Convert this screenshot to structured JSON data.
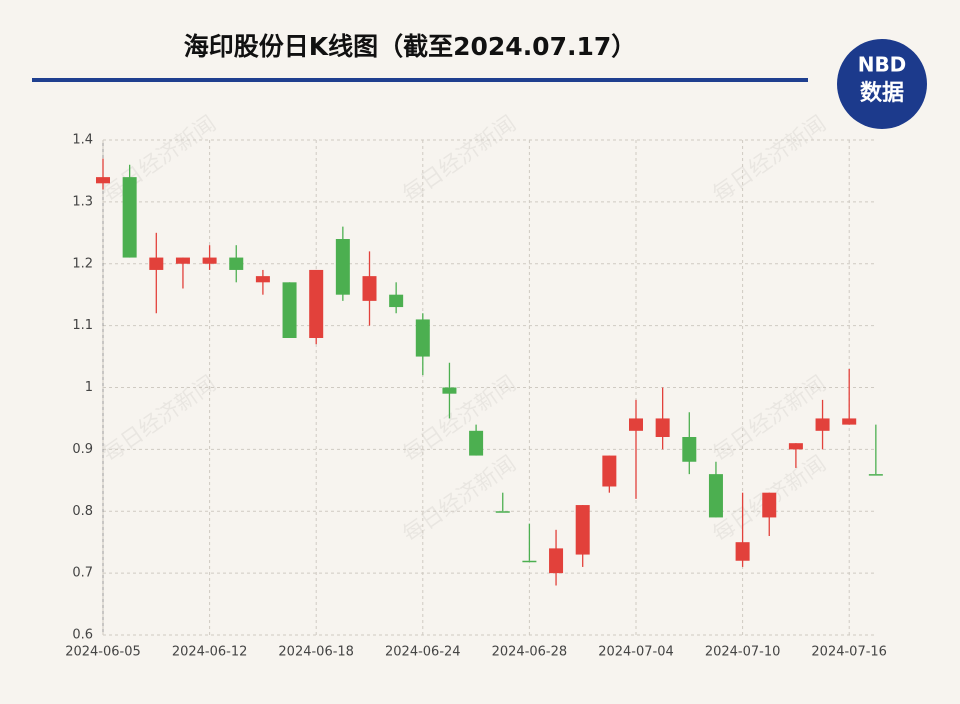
{
  "chart_data": {
    "type": "candlestick",
    "title": "海印股份日K线图（截至2024.07.17）",
    "logo": {
      "top": "NBD",
      "bottom": "数据"
    },
    "watermark": "每日经济新闻",
    "categories": [
      "2024-06-05",
      null,
      null,
      null,
      "2024-06-12",
      null,
      null,
      null,
      "2024-06-18",
      null,
      null,
      null,
      "2024-06-24",
      null,
      null,
      null,
      "2024-06-28",
      null,
      null,
      null,
      "2024-07-04",
      null,
      null,
      null,
      "2024-07-10",
      null,
      null,
      null,
      "2024-07-16",
      null
    ],
    "open": [
      1.33,
      1.34,
      1.19,
      1.2,
      1.2,
      1.21,
      1.17,
      1.17,
      1.08,
      1.24,
      1.14,
      1.15,
      1.11,
      1.0,
      0.93,
      0.8,
      0.72,
      0.7,
      0.73,
      0.84,
      0.93,
      0.92,
      0.92,
      0.86,
      0.72,
      0.79,
      0.9,
      0.93,
      0.94,
      0.86
    ],
    "high": [
      1.37,
      1.36,
      1.25,
      1.21,
      1.23,
      1.23,
      1.19,
      1.17,
      1.19,
      1.26,
      1.22,
      1.17,
      1.12,
      1.04,
      0.94,
      0.83,
      0.78,
      0.77,
      0.81,
      0.89,
      0.98,
      1.0,
      0.96,
      0.88,
      0.83,
      0.83,
      0.91,
      0.98,
      1.03,
      0.94
    ],
    "low": [
      1.32,
      1.21,
      1.12,
      1.16,
      1.19,
      1.17,
      1.15,
      1.08,
      1.07,
      1.14,
      1.1,
      1.12,
      1.02,
      0.95,
      0.89,
      0.8,
      0.72,
      0.68,
      0.71,
      0.83,
      0.82,
      0.9,
      0.86,
      0.79,
      0.71,
      0.76,
      0.87,
      0.9,
      0.94,
      0.86
    ],
    "close": [
      1.34,
      1.21,
      1.21,
      1.21,
      1.21,
      1.19,
      1.18,
      1.08,
      1.19,
      1.15,
      1.18,
      1.13,
      1.05,
      0.99,
      0.89,
      0.8,
      0.72,
      0.74,
      0.81,
      0.89,
      0.95,
      0.95,
      0.88,
      0.79,
      0.75,
      0.83,
      0.91,
      0.95,
      0.95,
      0.86
    ],
    "up_color": "#e2413b",
    "down_color": "#4caf50",
    "ylim": [
      0.6,
      1.4
    ],
    "yticks": [
      0.6,
      0.7,
      0.8,
      0.9,
      1,
      1.1,
      1.2,
      1.3,
      1.4
    ],
    "grid": true
  }
}
